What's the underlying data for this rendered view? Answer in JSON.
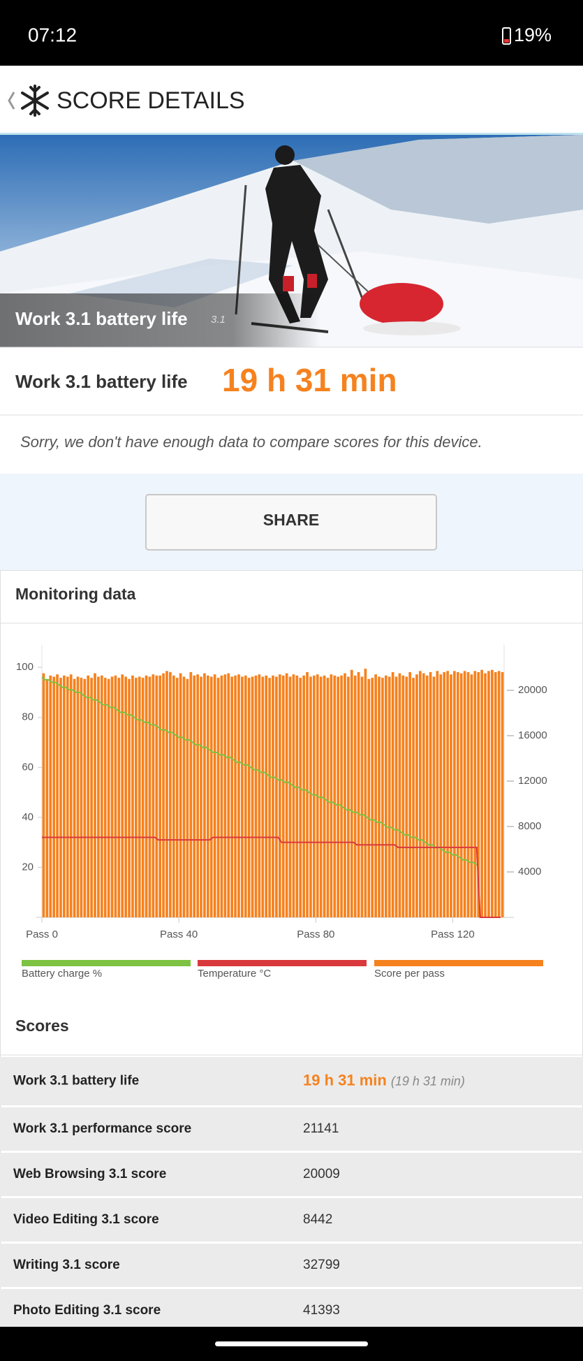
{
  "status_bar": {
    "time": "07:12",
    "battery": "19%"
  },
  "header": {
    "title": "SCORE DETAILS"
  },
  "hero": {
    "title": "Work 3.1 battery life",
    "version": "3.1"
  },
  "result": {
    "label": "Work 3.1 battery life",
    "value": "19 h 31 min"
  },
  "notice": "Sorry, we don't have enough data to compare scores for this device.",
  "share_button": "SHARE",
  "chart_data": {
    "type": "bar",
    "title": "Monitoring data",
    "x": [
      0,
      1,
      2,
      3,
      4,
      5,
      6,
      7,
      8,
      9,
      10,
      11,
      12,
      13,
      14,
      15,
      16,
      17,
      18,
      19,
      20,
      21,
      22,
      23,
      24,
      25,
      26,
      27,
      28,
      29,
      30,
      31,
      32,
      33,
      34,
      35,
      36,
      37,
      38,
      39,
      40,
      41,
      42,
      43,
      44,
      45,
      46,
      47,
      48,
      49,
      50,
      51,
      52,
      53,
      54,
      55,
      56,
      57,
      58,
      59,
      60,
      61,
      62,
      63,
      64,
      65,
      66,
      67,
      68,
      69,
      70,
      71,
      72,
      73,
      74,
      75,
      76,
      77,
      78,
      79,
      80,
      81,
      82,
      83,
      84,
      85,
      86,
      87,
      88,
      89,
      90,
      91,
      92,
      93,
      94,
      95,
      96,
      97,
      98,
      99,
      100,
      101,
      102,
      103,
      104,
      105,
      106,
      107,
      108,
      109,
      110,
      111,
      112,
      113,
      114,
      115,
      116,
      117,
      118,
      119,
      120,
      121,
      122,
      123,
      124,
      125,
      126,
      127,
      128,
      129,
      130,
      131,
      132,
      133,
      134
    ],
    "xlim": [
      0,
      135
    ],
    "xticks": [
      {
        "value": 0,
        "label": "Pass 0"
      },
      {
        "value": 40,
        "label": "Pass 40"
      },
      {
        "value": 80,
        "label": "Pass 80"
      },
      {
        "value": 120,
        "label": "Pass 120"
      }
    ],
    "ylim": [
      0,
      109
    ],
    "yticks": [
      20,
      40,
      60,
      80,
      100
    ],
    "y2lim": [
      0,
      24000
    ],
    "y2ticks": [
      4000,
      8000,
      12000,
      16000,
      20000
    ],
    "series": [
      {
        "name": "Battery charge %",
        "color": "#7dc242",
        "type": "line",
        "values": [
          96,
          95,
          95,
          94,
          94,
          93,
          92,
          92,
          91,
          91,
          90,
          90,
          89,
          88,
          88,
          87,
          87,
          86,
          85,
          85,
          84,
          84,
          83,
          82,
          82,
          81,
          81,
          80,
          79,
          79,
          78,
          78,
          77,
          77,
          76,
          75,
          75,
          74,
          74,
          73,
          72,
          72,
          71,
          71,
          70,
          69,
          69,
          68,
          68,
          67,
          66,
          66,
          65,
          65,
          64,
          64,
          63,
          62,
          62,
          61,
          61,
          60,
          59,
          59,
          58,
          58,
          57,
          56,
          56,
          55,
          55,
          54,
          54,
          53,
          52,
          52,
          51,
          51,
          50,
          49,
          49,
          48,
          48,
          47,
          46,
          46,
          45,
          45,
          44,
          43,
          43,
          42,
          42,
          41,
          41,
          40,
          39,
          39,
          38,
          38,
          37,
          36,
          36,
          35,
          35,
          34,
          33,
          33,
          32,
          32,
          31,
          31,
          30,
          29,
          29,
          28,
          28,
          27,
          26,
          26,
          25,
          25,
          24,
          23,
          23,
          22,
          22,
          21,
          null,
          null,
          null,
          null,
          null,
          null,
          null
        ]
      },
      {
        "name": "Temperature °C",
        "color": "#d9393c",
        "type": "line",
        "values": [
          32,
          32,
          32,
          32,
          32,
          32,
          32,
          32,
          32,
          32,
          32,
          32,
          32,
          32,
          32,
          32,
          32,
          32,
          32,
          32,
          32,
          32,
          32,
          32,
          32,
          32,
          32,
          32,
          32,
          32,
          32,
          32,
          32,
          32,
          31,
          31,
          31,
          31,
          31,
          31,
          31,
          31,
          31,
          31,
          31,
          31,
          31,
          31,
          31,
          31,
          32,
          32,
          32,
          32,
          32,
          32,
          32,
          32,
          32,
          32,
          32,
          32,
          32,
          32,
          32,
          32,
          32,
          32,
          32,
          32,
          30,
          30,
          30,
          30,
          30,
          30,
          30,
          30,
          30,
          30,
          30,
          30,
          30,
          30,
          30,
          30,
          30,
          30,
          30,
          30,
          30,
          30,
          29,
          29,
          29,
          29,
          29,
          29,
          29,
          29,
          29,
          29,
          29,
          29,
          28,
          28,
          28,
          28,
          28,
          28,
          28,
          28,
          28,
          28,
          28,
          28,
          28,
          28,
          28,
          28,
          28,
          28,
          28,
          28,
          28,
          28,
          28,
          28,
          0,
          0,
          0,
          0,
          0,
          0,
          0
        ]
      },
      {
        "name": "Score per pass",
        "color": "#f5821f",
        "type": "bar",
        "axis": "y2",
        "values": [
          21500,
          21000,
          21300,
          21200,
          21400,
          21100,
          21300,
          21200,
          21400,
          21000,
          21200,
          21100,
          21000,
          21300,
          21100,
          21500,
          21200,
          21300,
          21100,
          21000,
          21200,
          21300,
          21100,
          21400,
          21200,
          21000,
          21300,
          21100,
          21200,
          21100,
          21300,
          21200,
          21400,
          21300,
          21300,
          21500,
          21700,
          21600,
          21300,
          21100,
          21500,
          21200,
          21000,
          21600,
          21300,
          21400,
          21200,
          21500,
          21300,
          21200,
          21400,
          21100,
          21300,
          21400,
          21500,
          21200,
          21300,
          21400,
          21200,
          21300,
          21100,
          21200,
          21300,
          21400,
          21200,
          21300,
          21100,
          21300,
          21200,
          21400,
          21300,
          21500,
          21200,
          21400,
          21300,
          21100,
          21300,
          21600,
          21200,
          21300,
          21400,
          21200,
          21300,
          21100,
          21400,
          21300,
          21200,
          21300,
          21500,
          21200,
          21800,
          21300,
          21600,
          21200,
          21900,
          21000,
          21100,
          21400,
          21200,
          21100,
          21300,
          21200,
          21600,
          21200,
          21500,
          21300,
          21200,
          21600,
          21100,
          21400,
          21700,
          21500,
          21300,
          21600,
          21200,
          21700,
          21400,
          21600,
          21700,
          21400,
          21700,
          21600,
          21500,
          21700,
          21600,
          21400,
          21700,
          21600,
          21800,
          21500,
          21700,
          21800,
          21600,
          21700,
          21600
        ]
      }
    ]
  },
  "scores": {
    "title": "Scores",
    "rows": [
      {
        "label": "Work 3.1 battery life",
        "value": "19 h 31 min",
        "detail": "(19 h 31 min)"
      },
      {
        "label": "Work 3.1 performance score",
        "value": "21141"
      },
      {
        "label": "Web Browsing 3.1 score",
        "value": "20009"
      },
      {
        "label": "Video Editing 3.1 score",
        "value": "8442"
      },
      {
        "label": "Writing 3.1 score",
        "value": "32799"
      },
      {
        "label": "Photo Editing 3.1 score",
        "value": "41393"
      }
    ]
  }
}
